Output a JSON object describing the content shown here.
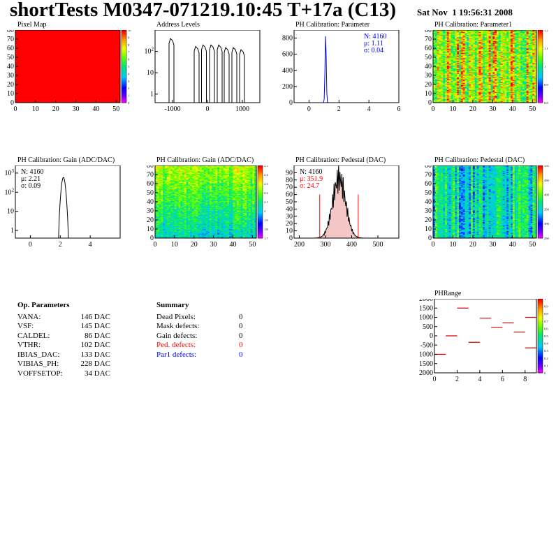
{
  "header": {
    "title": "shortTests M0347-071219.10:45 T+17a (C13)",
    "date": "Sat Nov  1 19:56:31 2008"
  },
  "chart_data": [
    {
      "id": "pixel-map",
      "type": "heatmap",
      "title": "Pixel Map",
      "xlim": [
        0,
        52
      ],
      "ylim": [
        0,
        80
      ],
      "xticks": [
        "0",
        "10",
        "20",
        "30",
        "40",
        "50"
      ],
      "yticks": [
        "0",
        "10",
        "20",
        "30",
        "40",
        "50",
        "60",
        "70",
        "80"
      ],
      "fill_value": 10,
      "zlim": [
        0,
        10
      ],
      "colorbar_ticks": [
        "0",
        "1",
        "2",
        "3",
        "4",
        "5",
        "6",
        "7",
        "8",
        "9",
        "10"
      ]
    },
    {
      "id": "address-levels",
      "type": "bar",
      "title": "Address Levels",
      "log_y": true,
      "xlim": [
        -1500,
        1500
      ],
      "xticks": [
        "-1000",
        "0",
        "1000"
      ],
      "yticks": [
        "1",
        "10",
        "10^2"
      ],
      "peaks": [
        {
          "x": -1020,
          "y": 400
        },
        {
          "x": -300,
          "y": 170
        },
        {
          "x": -90,
          "y": 200
        },
        {
          "x": 140,
          "y": 200
        },
        {
          "x": 360,
          "y": 200
        },
        {
          "x": 560,
          "y": 150
        },
        {
          "x": 780,
          "y": 150
        },
        {
          "x": 1000,
          "y": 120
        }
      ]
    },
    {
      "id": "ph-calibration-parameter",
      "type": "bar",
      "title": "PH Calibration: Parameter",
      "xlim": [
        -1,
        6
      ],
      "ylim": [
        0,
        900
      ],
      "xticks": [
        "0",
        "2",
        "4",
        "6"
      ],
      "yticks": [
        "0",
        "200",
        "400",
        "600",
        "800"
      ],
      "stats": {
        "n": "N: 4160",
        "mean": "μ: 1.11",
        "sigma": "σ: 0.04"
      },
      "peak": {
        "x": 1.11,
        "sigma": 0.04,
        "y": 850
      }
    },
    {
      "id": "ph-calibration-parameter1",
      "type": "heatmap",
      "title": "PH Calibration: Parameter1",
      "xlim": [
        0,
        52
      ],
      "ylim": [
        0,
        80
      ],
      "xticks": [
        "0",
        "10",
        "20",
        "30",
        "40",
        "50"
      ],
      "yticks": [
        "0",
        "10",
        "20",
        "30",
        "40",
        "50",
        "60",
        "70",
        "80"
      ],
      "colorbar_ticks": [
        "0.8",
        "0.9",
        "1",
        "1.1",
        "1.2"
      ]
    },
    {
      "id": "ph-calibration-gain-hist",
      "type": "bar",
      "title": "PH Calibration: Gain (ADC/DAC)",
      "log_y": true,
      "xlim": [
        -1,
        6
      ],
      "xticks": [
        "0",
        "2",
        "4"
      ],
      "yticks": [
        "1",
        "10",
        "10^2",
        "10^3"
      ],
      "stats": {
        "n": "N: 4160",
        "mean": "μ: 2.21",
        "sigma": "σ: 0.09"
      },
      "peak": {
        "x": 2.21,
        "sigma": 0.09,
        "y": 600
      }
    },
    {
      "id": "ph-calibration-gain-map",
      "type": "heatmap",
      "title": "PH Calibration: Gain (ADC/DAC)",
      "xlim": [
        0,
        52
      ],
      "ylim": [
        0,
        80
      ],
      "xticks": [
        "0",
        "10",
        "20",
        "30",
        "40",
        "50"
      ],
      "yticks": [
        "0",
        "10",
        "20",
        "30",
        "40",
        "50",
        "60",
        "70",
        "80"
      ],
      "colorbar_ticks": [
        "1.7",
        "1.8",
        "1.9",
        "2",
        "2.1",
        "2.2",
        "2.3",
        "2.4",
        "2.5"
      ]
    },
    {
      "id": "ph-calibration-pedestal-hist",
      "type": "bar",
      "title": "PH Calibration: Pedestal (DAC)",
      "xlim": [
        180,
        580
      ],
      "ylim": [
        0,
        100
      ],
      "xticks": [
        "200",
        "300",
        "400",
        "500"
      ],
      "yticks": [
        "0",
        "10",
        "20",
        "30",
        "40",
        "50",
        "60",
        "70",
        "80",
        "90"
      ],
      "stats": {
        "n": "N: 4160",
        "mean": "μ: 351.9",
        "sigma": "σ: 24.7"
      },
      "peak": {
        "x": 351.9,
        "sigma": 24.7,
        "y": 82
      },
      "cut_lines": [
        278,
        425
      ]
    },
    {
      "id": "ph-calibration-pedestal-map",
      "type": "heatmap",
      "title": "PH Calibration: Pedestal (DAC)",
      "xlim": [
        0,
        52
      ],
      "ylim": [
        0,
        80
      ],
      "xticks": [
        "0",
        "10",
        "20",
        "30",
        "40",
        "50"
      ],
      "yticks": [
        "0",
        "10",
        "20",
        "30",
        "40",
        "50",
        "60",
        "70",
        "80"
      ],
      "colorbar_ticks": [
        "250",
        "300",
        "350",
        "400",
        "450",
        "500"
      ]
    },
    {
      "id": "phrange",
      "type": "scatter",
      "title": "PHRange",
      "xlim": [
        0,
        9
      ],
      "ylim": [
        -2000,
        2000
      ],
      "xticks": [
        "0",
        "2",
        "4",
        "6",
        "8"
      ],
      "yticks": [
        "2000",
        "1500",
        "1000",
        "500",
        "0",
        "-500",
        "1000",
        "1500",
        "2000"
      ],
      "colorbar_ticks": [
        "0",
        "0.1",
        "0.2",
        "0.3",
        "0.4",
        "0.5",
        "0.6",
        "0.7",
        "0.8",
        "0.9",
        "1"
      ],
      "segments": [
        {
          "x": 0.5,
          "y": -1000
        },
        {
          "x": 1.5,
          "y": 0
        },
        {
          "x": 2.5,
          "y": 1500
        },
        {
          "x": 3.5,
          "y": -350
        },
        {
          "x": 4.5,
          "y": 950
        },
        {
          "x": 5.5,
          "y": 450
        },
        {
          "x": 6.5,
          "y": 700
        },
        {
          "x": 7.5,
          "y": 200
        },
        {
          "x": 8.5,
          "y": 1000
        },
        {
          "x": 8.5,
          "y": -650
        }
      ]
    }
  ],
  "op_params": {
    "title": "Op. Parameters",
    "rows": [
      {
        "name": "VANA:",
        "value": "146 DAC"
      },
      {
        "name": "VSF:",
        "value": "145 DAC"
      },
      {
        "name": "CALDEL:",
        "value": "86 DAC"
      },
      {
        "name": "VTHR:",
        "value": "102 DAC"
      },
      {
        "name": "IBIAS_DAC:",
        "value": "133 DAC"
      },
      {
        "name": "VIBIAS_PH:",
        "value": "228 DAC"
      },
      {
        "name": "VOFFSETOP:",
        "value": "34 DAC"
      }
    ]
  },
  "summary": {
    "title": "Summary",
    "rows": [
      {
        "name": "Dead Pixels:",
        "value": "0",
        "color": "#000000"
      },
      {
        "name": "Mask defects:",
        "value": "0",
        "color": "#000000"
      },
      {
        "name": "Gain defects:",
        "value": "0",
        "color": "#000000"
      },
      {
        "name": "Ped. defects:",
        "value": "0",
        "color": "#ff0000"
      },
      {
        "name": "Par1 defects:",
        "value": "0",
        "color": "#0000ff"
      }
    ]
  }
}
